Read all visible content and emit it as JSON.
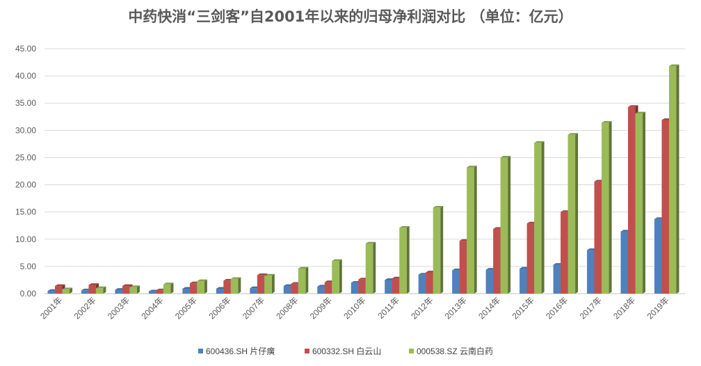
{
  "chart_data": {
    "type": "bar",
    "title": "中药快消“三剑客”自2001年以来的归母净利润对比 （单位：亿元）",
    "xlabel": "",
    "ylabel": "",
    "ylim": [
      0,
      45
    ],
    "yticks": [
      "0.00",
      "5.00",
      "10.00",
      "15.00",
      "20.00",
      "25.00",
      "30.00",
      "35.00",
      "40.00",
      "45.00"
    ],
    "grid": true,
    "legend_position": "bottom",
    "categories": [
      "2001年",
      "2002年",
      "2003年",
      "2004年",
      "2005年",
      "2006年",
      "2007年",
      "2008年",
      "2009年",
      "2010年",
      "2011年",
      "2012年",
      "2013年",
      "2014年",
      "2015年",
      "2016年",
      "2017年",
      "2018年",
      "2019年"
    ],
    "series": [
      {
        "name": "600436.SH 片仔癀",
        "color": "#4F81BD",
        "values": [
          0.5,
          0.6,
          0.7,
          0.4,
          0.9,
          0.9,
          1.0,
          1.4,
          1.3,
          2.0,
          2.5,
          3.5,
          4.3,
          4.4,
          4.6,
          5.3,
          8.0,
          11.4,
          13.7
        ]
      },
      {
        "name": "600332.SH 白云山",
        "color": "#C0504D",
        "values": [
          1.4,
          1.6,
          1.4,
          0.6,
          1.9,
          2.4,
          3.4,
          1.8,
          2.1,
          2.6,
          2.8,
          3.9,
          9.7,
          11.9,
          12.9,
          15.0,
          20.6,
          34.3,
          31.9
        ]
      },
      {
        "name": "000538.SZ 云南白药",
        "color": "#9BBB59",
        "values": [
          0.8,
          1.0,
          1.2,
          1.7,
          2.3,
          2.7,
          3.3,
          4.6,
          6.0,
          9.2,
          12.1,
          15.8,
          23.2,
          25.0,
          27.7,
          29.2,
          31.4,
          33.1,
          41.8
        ]
      }
    ]
  }
}
